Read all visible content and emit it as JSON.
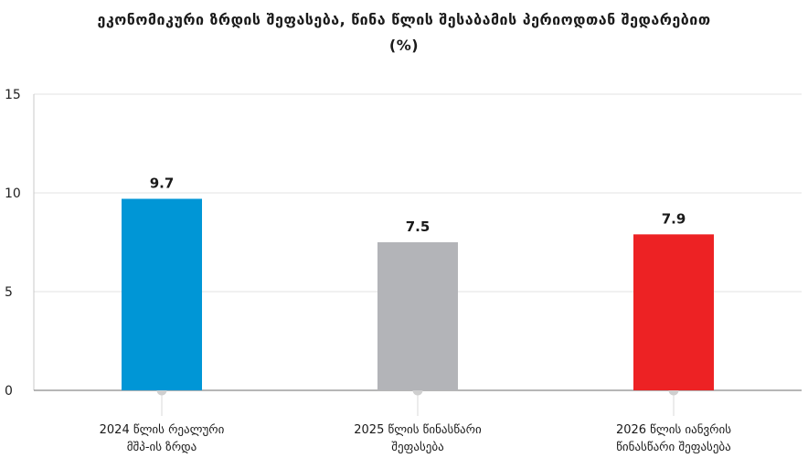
{
  "chart_data": {
    "type": "bar",
    "title_lines": [
      "ეკონომიკური ზრდის შეფასება, წინა წლის შესაბამის პერიოდთან შედარებით",
      "(%)"
    ],
    "categories": [
      [
        "2024 წლის რეალური",
        "მშპ-ის ზრდა"
      ],
      [
        "2025 წლის წინასწარი",
        "შეფასება"
      ],
      [
        "2026 წლის იანვრის",
        "წინასწარი შეფასება"
      ]
    ],
    "values": [
      9.7,
      7.5,
      7.9
    ],
    "data_labels": [
      "9.7",
      "7.5",
      "7.9"
    ],
    "bar_colors": [
      "#0096d6",
      "#b3b4b8",
      "#ed2224"
    ],
    "ylim": [
      0,
      15
    ],
    "yticks": [
      0,
      5,
      10,
      15
    ],
    "ytick_labels": [
      "0",
      "5",
      "10",
      "15"
    ],
    "grid": true,
    "xlabel": "",
    "ylabel": ""
  }
}
